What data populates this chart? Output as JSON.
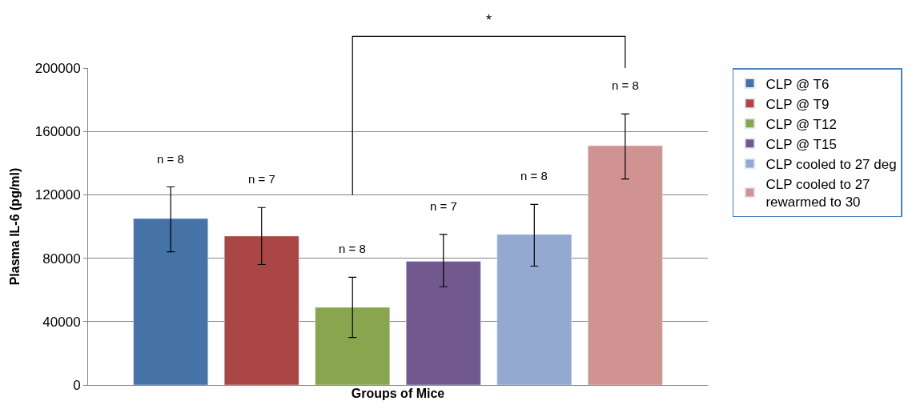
{
  "chart_data": {
    "type": "bar",
    "xlabel": "Groups of Mice",
    "ylabel": "Plasma IL-6 (pg/ml)",
    "categories": [
      null
    ],
    "series": [
      {
        "name": "CLP @ T6",
        "color": "#4572a7",
        "values": [
          105000
        ],
        "errors": [
          [
            84000,
            125000
          ]
        ]
      },
      {
        "name": "CLP @ T9",
        "color": "#aa4643",
        "values": [
          94000
        ],
        "errors": [
          [
            76000,
            112000
          ]
        ]
      },
      {
        "name": "CLP @ T12",
        "color": "#89a54e",
        "values": [
          49000
        ],
        "errors": [
          [
            30000,
            68000
          ]
        ]
      },
      {
        "name": "CLP @ T15",
        "color": "#71588f",
        "values": [
          78000
        ],
        "errors": [
          [
            62000,
            95000
          ]
        ]
      },
      {
        "name": "CLP cooled to 27 deg",
        "color": "#93a9cf",
        "values": [
          95000
        ],
        "errors": [
          [
            75000,
            114000
          ]
        ]
      },
      {
        "name": "CLP cooled to 27 rewarmed to 30",
        "color": "#d19392",
        "values": [
          151000
        ],
        "errors": [
          [
            130000,
            171000
          ]
        ]
      }
    ],
    "annotations": [
      "n = 8",
      "n = 7",
      "n = 8",
      "n = 7",
      "n = 8",
      "n = 8",
      "*"
    ],
    "ylim": [
      0,
      200000
    ],
    "yticks": [
      0,
      40000,
      80000,
      120000,
      160000,
      200000
    ],
    "grid": "y",
    "legend": "right"
  }
}
